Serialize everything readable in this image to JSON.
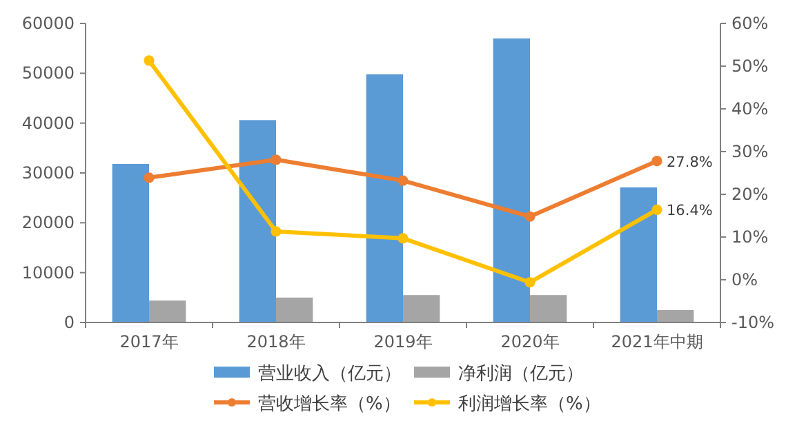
{
  "chart_data": {
    "type": "bar",
    "categories": [
      "2017年",
      "2018年",
      "2019年",
      "2020年",
      "2021年中期"
    ],
    "series": [
      {
        "name": "营业收入（亿元）",
        "color": "#5b9bd5",
        "values": [
          31800,
          40600,
          49800,
          57000,
          27100
        ]
      },
      {
        "name": "净利润（亿元）",
        "color": "#a5a5a5",
        "values": [
          4400,
          5000,
          5500,
          5500,
          2500
        ]
      },
      {
        "name": "营收增长率（%）",
        "type": "line",
        "axis": "y2",
        "color": "#ed7d31",
        "values": [
          23.9,
          28.1,
          23.2,
          14.8,
          27.8
        ],
        "value_labels": [
          null,
          null,
          null,
          null,
          "27.8%"
        ]
      },
      {
        "name": "利润增长率（%）",
        "type": "line",
        "axis": "y2",
        "color": "#ffc000",
        "values": [
          51.3,
          11.3,
          9.7,
          -0.6,
          16.4
        ],
        "value_labels": [
          null,
          null,
          null,
          null,
          "16.4%"
        ]
      }
    ],
    "ylim": [
      0,
      60000
    ],
    "yticks": [
      0,
      10000,
      20000,
      30000,
      40000,
      50000,
      60000
    ],
    "y2lim": [
      -10,
      60
    ],
    "y2ticks": [
      {
        "value": -10,
        "label": "-10%"
      },
      {
        "value": 0,
        "label": "0%"
      },
      {
        "value": 10,
        "label": "10%"
      },
      {
        "value": 20,
        "label": "20%"
      },
      {
        "value": 30,
        "label": "30%"
      },
      {
        "value": 40,
        "label": "40%"
      },
      {
        "value": 50,
        "label": "50%"
      },
      {
        "value": 60,
        "label": "60%"
      }
    ],
    "grid": false,
    "legend": "bottom",
    "marker": "circle",
    "line_style": "solid"
  }
}
